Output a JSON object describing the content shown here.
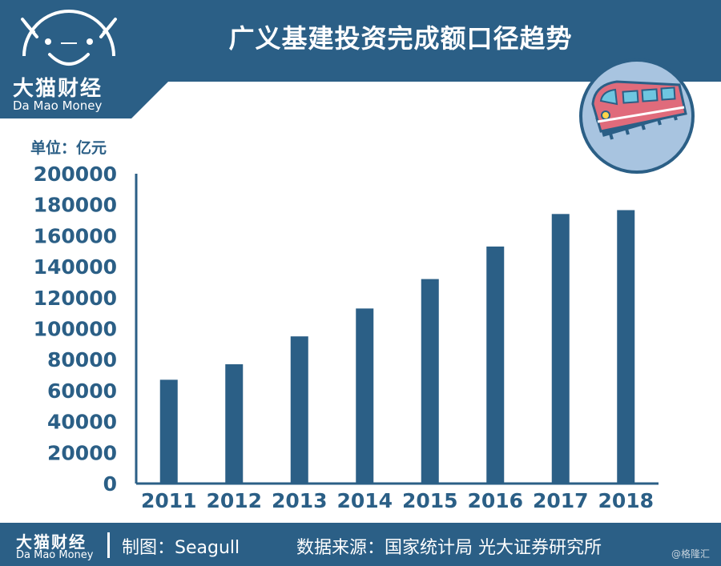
{
  "header": {
    "title": "广义基建投资完成额口径趋势",
    "logo_cn": "大猫财经",
    "logo_en": "Da Mao Money"
  },
  "unit_label": "单位：亿元",
  "colors": {
    "brand": "#2b5f86",
    "bar": "#2b5f86",
    "train_badge_bg": "#a8c4e0",
    "train_body": "#e06b7b"
  },
  "icons": [
    "cat-logo-icon",
    "train-icon"
  ],
  "chart_data": {
    "type": "bar",
    "categories": [
      "2011",
      "2012",
      "2013",
      "2014",
      "2015",
      "2016",
      "2017",
      "2018"
    ],
    "values": [
      67000,
      77000,
      95000,
      113000,
      132000,
      153000,
      174000,
      176500
    ],
    "title": "广义基建投资完成额口径趋势",
    "xlabel": "",
    "ylabel": "单位：亿元",
    "ylim": [
      0,
      200000
    ],
    "yticks": [
      "0",
      "20000",
      "40000",
      "60000",
      "80000",
      "100000",
      "120000",
      "140000",
      "160000",
      "180000",
      "200000"
    ],
    "grid": false
  },
  "footer": {
    "logo_cn": "大猫财经",
    "logo_en": "Da Mao Money",
    "credit": "制图：Seagull",
    "source": "数据来源：国家统计局  光大证券研究所"
  },
  "watermark": "@格隆汇"
}
